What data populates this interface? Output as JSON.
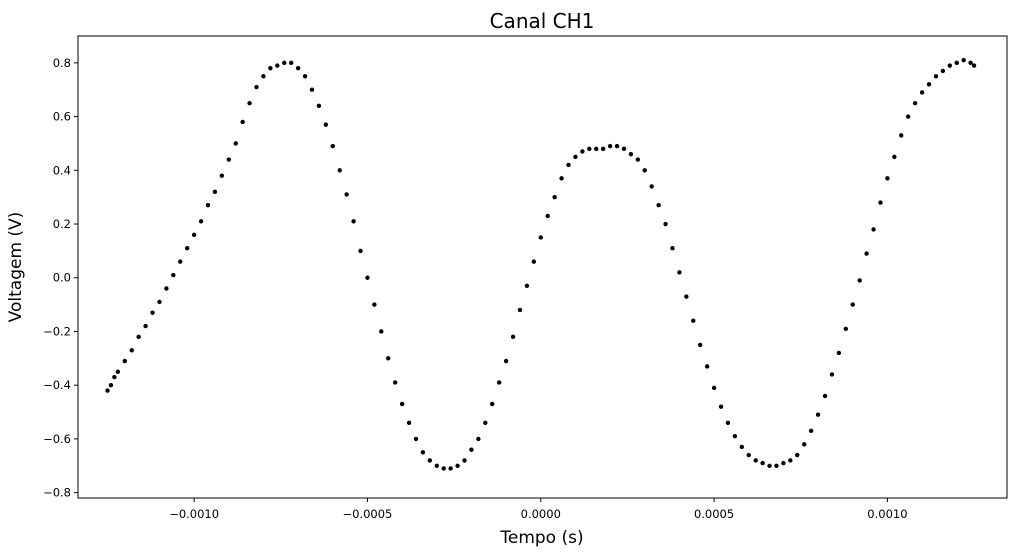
{
  "chart_data": {
    "type": "scatter",
    "title": "Canal CH1",
    "xlabel": "Tempo (s)",
    "ylabel": "Voltagem (V)",
    "xlim": [
      -0.001335,
      0.001345
    ],
    "ylim": [
      -0.82,
      0.9
    ],
    "grid": false,
    "legend": "none",
    "marker_color": "#000000",
    "x_ticks": [
      {
        "value": -0.001,
        "label": "−0.0010"
      },
      {
        "value": -0.0005,
        "label": "−0.0005"
      },
      {
        "value": 0.0,
        "label": "0.0000"
      },
      {
        "value": 0.0005,
        "label": "0.0005"
      },
      {
        "value": 0.001,
        "label": "0.0010"
      }
    ],
    "y_ticks": [
      {
        "value": -0.8,
        "label": "−0.8"
      },
      {
        "value": -0.6,
        "label": "−0.6"
      },
      {
        "value": -0.4,
        "label": "−0.4"
      },
      {
        "value": -0.2,
        "label": "−0.2"
      },
      {
        "value": 0.0,
        "label": "0.0"
      },
      {
        "value": 0.2,
        "label": "0.2"
      },
      {
        "value": 0.4,
        "label": "0.4"
      },
      {
        "value": 0.6,
        "label": "0.6"
      },
      {
        "value": 0.8,
        "label": "0.8"
      }
    ],
    "series": [
      {
        "points": [
          [
            -0.00125,
            -0.42
          ],
          [
            -0.00124,
            -0.4
          ],
          [
            -0.00123,
            -0.37
          ],
          [
            -0.00122,
            -0.35
          ],
          [
            -0.0012,
            -0.31
          ],
          [
            -0.00118,
            -0.27
          ],
          [
            -0.00116,
            -0.22
          ],
          [
            -0.00114,
            -0.18
          ],
          [
            -0.00112,
            -0.13
          ],
          [
            -0.0011,
            -0.09
          ],
          [
            -0.00108,
            -0.04
          ],
          [
            -0.00106,
            0.01
          ],
          [
            -0.00104,
            0.06
          ],
          [
            -0.00102,
            0.11
          ],
          [
            -0.001,
            0.16
          ],
          [
            -0.00098,
            0.21
          ],
          [
            -0.00096,
            0.27
          ],
          [
            -0.00094,
            0.32
          ],
          [
            -0.00092,
            0.38
          ],
          [
            -0.0009,
            0.44
          ],
          [
            -0.00088,
            0.5
          ],
          [
            -0.00086,
            0.58
          ],
          [
            -0.00084,
            0.65
          ],
          [
            -0.00082,
            0.71
          ],
          [
            -0.0008,
            0.75
          ],
          [
            -0.00078,
            0.78
          ],
          [
            -0.00076,
            0.79
          ],
          [
            -0.00074,
            0.8
          ],
          [
            -0.00072,
            0.8
          ],
          [
            -0.0007,
            0.78
          ],
          [
            -0.00068,
            0.75
          ],
          [
            -0.00066,
            0.7
          ],
          [
            -0.00064,
            0.64
          ],
          [
            -0.00062,
            0.57
          ],
          [
            -0.0006,
            0.49
          ],
          [
            -0.00058,
            0.4
          ],
          [
            -0.00056,
            0.31
          ],
          [
            -0.00054,
            0.21
          ],
          [
            -0.00052,
            0.1
          ],
          [
            -0.0005,
            0.0
          ],
          [
            -0.00048,
            -0.1
          ],
          [
            -0.00046,
            -0.2
          ],
          [
            -0.00044,
            -0.3
          ],
          [
            -0.00042,
            -0.39
          ],
          [
            -0.0004,
            -0.47
          ],
          [
            -0.00038,
            -0.54
          ],
          [
            -0.00036,
            -0.6
          ],
          [
            -0.00034,
            -0.65
          ],
          [
            -0.00032,
            -0.68
          ],
          [
            -0.0003,
            -0.7
          ],
          [
            -0.00028,
            -0.71
          ],
          [
            -0.00026,
            -0.71
          ],
          [
            -0.00024,
            -0.7
          ],
          [
            -0.00022,
            -0.68
          ],
          [
            -0.0002,
            -0.64
          ],
          [
            -0.00018,
            -0.6
          ],
          [
            -0.00016,
            -0.54
          ],
          [
            -0.00014,
            -0.47
          ],
          [
            -0.00012,
            -0.39
          ],
          [
            -0.0001,
            -0.31
          ],
          [
            -8e-05,
            -0.22
          ],
          [
            -6e-05,
            -0.12
          ],
          [
            -4e-05,
            -0.03
          ],
          [
            -2e-05,
            0.06
          ],
          [
            0.0,
            0.15
          ],
          [
            2e-05,
            0.23
          ],
          [
            4e-05,
            0.3
          ],
          [
            6e-05,
            0.37
          ],
          [
            8e-05,
            0.42
          ],
          [
            0.0001,
            0.45
          ],
          [
            0.00012,
            0.47
          ],
          [
            0.00014,
            0.48
          ],
          [
            0.00016,
            0.48
          ],
          [
            0.00018,
            0.48
          ],
          [
            0.0002,
            0.49
          ],
          [
            0.00022,
            0.49
          ],
          [
            0.00024,
            0.48
          ],
          [
            0.00026,
            0.46
          ],
          [
            0.00028,
            0.44
          ],
          [
            0.0003,
            0.4
          ],
          [
            0.00032,
            0.34
          ],
          [
            0.00034,
            0.27
          ],
          [
            0.00036,
            0.2
          ],
          [
            0.00038,
            0.11
          ],
          [
            0.0004,
            0.02
          ],
          [
            0.00042,
            -0.07
          ],
          [
            0.00044,
            -0.16
          ],
          [
            0.00046,
            -0.25
          ],
          [
            0.00048,
            -0.33
          ],
          [
            0.0005,
            -0.41
          ],
          [
            0.00052,
            -0.48
          ],
          [
            0.00054,
            -0.54
          ],
          [
            0.00056,
            -0.59
          ],
          [
            0.00058,
            -0.63
          ],
          [
            0.0006,
            -0.66
          ],
          [
            0.00062,
            -0.68
          ],
          [
            0.00064,
            -0.69
          ],
          [
            0.00066,
            -0.7
          ],
          [
            0.00068,
            -0.7
          ],
          [
            0.0007,
            -0.69
          ],
          [
            0.00072,
            -0.68
          ],
          [
            0.00074,
            -0.66
          ],
          [
            0.00076,
            -0.62
          ],
          [
            0.00078,
            -0.57
          ],
          [
            0.0008,
            -0.51
          ],
          [
            0.00082,
            -0.44
          ],
          [
            0.00084,
            -0.36
          ],
          [
            0.00086,
            -0.28
          ],
          [
            0.00088,
            -0.19
          ],
          [
            0.0009,
            -0.1
          ],
          [
            0.00092,
            -0.01
          ],
          [
            0.00094,
            0.09
          ],
          [
            0.00096,
            0.18
          ],
          [
            0.00098,
            0.28
          ],
          [
            0.001,
            0.37
          ],
          [
            0.00102,
            0.45
          ],
          [
            0.00104,
            0.53
          ],
          [
            0.00106,
            0.6
          ],
          [
            0.00108,
            0.65
          ],
          [
            0.0011,
            0.69
          ],
          [
            0.00112,
            0.72
          ],
          [
            0.00114,
            0.75
          ],
          [
            0.00116,
            0.77
          ],
          [
            0.00118,
            0.79
          ],
          [
            0.0012,
            0.8
          ],
          [
            0.00122,
            0.81
          ],
          [
            0.00124,
            0.8
          ],
          [
            0.00125,
            0.79
          ]
        ]
      }
    ]
  }
}
